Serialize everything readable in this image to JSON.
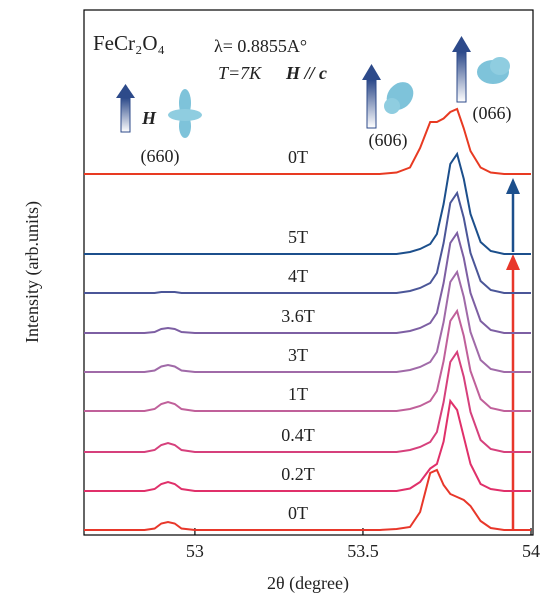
{
  "chart_data": {
    "type": "line",
    "xlabel": "2θ (degree)",
    "ylabel": "Intensity (arb.units)",
    "annotations": [
      "FeCr₂O₄",
      "λ= 0.8855A°",
      "T=7K",
      "H // c",
      "H",
      "(660)",
      "(606)",
      "(066)"
    ],
    "xlim": [
      52.67,
      54.0
    ],
    "xticks": [
      53,
      53.5,
      54
    ],
    "ylim": [
      0,
      105
    ],
    "x": [
      52.67,
      52.8,
      52.85,
      52.88,
      52.9,
      52.92,
      52.94,
      52.96,
      53.0,
      53.2,
      53.4,
      53.55,
      53.6,
      53.64,
      53.67,
      53.7,
      53.72,
      53.74,
      53.76,
      53.78,
      53.8,
      53.82,
      53.85,
      53.88,
      53.92,
      54.0
    ],
    "series": [
      {
        "name": "0T",
        "color": "#e8372a",
        "values": [
          1,
          1,
          1,
          1.3,
          2.3,
          2.6,
          2.3,
          1.3,
          1,
          1,
          1,
          1,
          1.2,
          1.6,
          4.6,
          12.4,
          13,
          10,
          8.2,
          7.6,
          7,
          5.8,
          2.8,
          1.4,
          1,
          1
        ]
      },
      {
        "name": "0.2T",
        "color": "#e0306a",
        "values": [
          8.8,
          8.8,
          8.8,
          9.2,
          10.2,
          10.6,
          10.2,
          9.2,
          8.8,
          8.8,
          8.8,
          8.8,
          8.8,
          9.3,
          10.6,
          13.3,
          14.2,
          18.7,
          26.8,
          25,
          19.6,
          14.2,
          10.2,
          9.2,
          8.8,
          8.8
        ]
      },
      {
        "name": "0.4T",
        "color": "#d6407c",
        "values": [
          16.6,
          16.6,
          16.6,
          17,
          18,
          18.4,
          18,
          17,
          16.6,
          16.6,
          16.6,
          16.6,
          16.6,
          17,
          17.6,
          18.6,
          20.6,
          26.6,
          34.6,
          36.6,
          31.6,
          24.6,
          19,
          17.2,
          16.6,
          16.6
        ]
      },
      {
        "name": "1T",
        "color": "#c0609a",
        "values": [
          24.8,
          24.8,
          24.8,
          25.2,
          26.2,
          26.6,
          26.2,
          25.2,
          24.8,
          24.8,
          24.8,
          24.8,
          24.8,
          25.2,
          25.8,
          26.8,
          28.8,
          34.8,
          42.8,
          44.8,
          39.8,
          32.8,
          27.2,
          25.4,
          24.8,
          24.8
        ]
      },
      {
        "name": "3T",
        "color": "#a06aa8",
        "values": [
          32.6,
          32.6,
          32.6,
          32.9,
          33.7,
          34,
          33.7,
          32.9,
          32.6,
          32.6,
          32.6,
          32.6,
          32.6,
          33,
          33.6,
          34.6,
          36.6,
          42.6,
          50.6,
          52.6,
          47.6,
          40.6,
          35,
          33.2,
          32.6,
          32.6
        ]
      },
      {
        "name": "3.6T",
        "color": "#7d5fa3",
        "values": [
          40.4,
          40.4,
          40.4,
          40.6,
          41.2,
          41.4,
          41.2,
          40.6,
          40.4,
          40.4,
          40.4,
          40.4,
          40.4,
          40.8,
          41.4,
          42.4,
          44.4,
          50.4,
          58.4,
          60.4,
          55.4,
          48.4,
          42.8,
          41,
          40.4,
          40.4
        ]
      },
      {
        "name": "4T",
        "color": "#4b5698",
        "values": [
          48.4,
          48.4,
          48.4,
          48.4,
          48.6,
          48.6,
          48.6,
          48.4,
          48.4,
          48.4,
          48.4,
          48.4,
          48.4,
          48.8,
          49.4,
          50.4,
          52.4,
          58.4,
          66.4,
          68.4,
          63.4,
          56.4,
          50.8,
          49,
          48.4,
          48.4
        ]
      },
      {
        "name": "5T",
        "color": "#1c4f8c",
        "values": [
          56.2,
          56.2,
          56.2,
          56.2,
          56.2,
          56.2,
          56.2,
          56.2,
          56.2,
          56.2,
          56.2,
          56.2,
          56.2,
          56.6,
          57.2,
          58.2,
          60.2,
          66.2,
          74.2,
          76.2,
          71.2,
          64.2,
          58.6,
          56.8,
          56.2,
          56.2
        ]
      },
      {
        "name": "0T",
        "color": "#e83a22",
        "values": [
          72.2,
          72.2,
          72.2,
          72.2,
          72.2,
          72.2,
          72.2,
          72.2,
          72.2,
          72.2,
          72.2,
          72.2,
          72.5,
          73.5,
          77.4,
          82.6,
          82.6,
          83.3,
          84.6,
          85.2,
          81.3,
          76.8,
          73.5,
          72.5,
          72.2,
          72.2
        ]
      }
    ]
  }
}
